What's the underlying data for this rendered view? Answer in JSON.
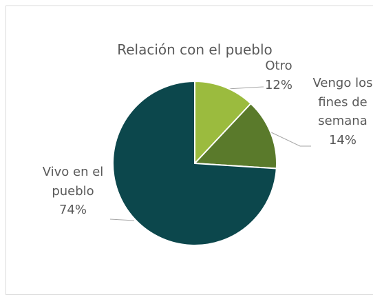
{
  "chart_data": {
    "type": "pie",
    "title": "Relación con el pueblo",
    "categories": [
      "Otro",
      "Vengo los fines de semana",
      "Vivo en el pueblo"
    ],
    "values": [
      12,
      14,
      74
    ],
    "value_labels": [
      "12%",
      "14%",
      "74%"
    ],
    "colors": [
      "#9bbb3e",
      "#5a7a2b",
      "#0c474c"
    ]
  }
}
